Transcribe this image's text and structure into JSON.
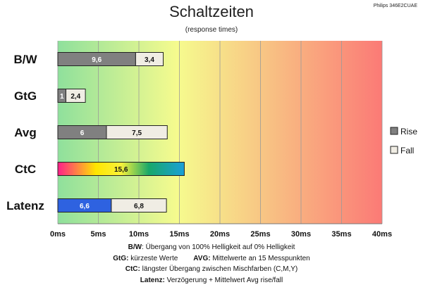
{
  "header": {
    "title": "Schaltzeiten",
    "subtitle": "(response times)",
    "model": "Philips 346E2CUAE"
  },
  "chart_data": {
    "type": "bar",
    "orientation": "horizontal",
    "stacked": true,
    "title": "Schaltzeiten",
    "subtitle": "(response times)",
    "categories": [
      "B/W",
      "GtG",
      "Avg",
      "CtC",
      "Latenz"
    ],
    "series": [
      {
        "name": "Rise",
        "values": [
          9.6,
          1,
          6,
          15.6,
          6.6
        ],
        "labels": [
          "9,6",
          "1",
          "6",
          "15,6",
          "6,6"
        ]
      },
      {
        "name": "Fall",
        "values": [
          3.4,
          2.4,
          7.5,
          null,
          6.8
        ],
        "labels": [
          "3,4",
          "2,4",
          "7,5",
          "",
          "6,8"
        ]
      }
    ],
    "xlim": [
      0,
      40
    ],
    "xticks": [
      "0ms",
      "5ms",
      "10ms",
      "15ms",
      "20ms",
      "25ms",
      "30ms",
      "35ms",
      "40ms"
    ],
    "grid": true,
    "legend": "right",
    "colors": {
      "rise": "#808080",
      "fall": "#f0ede4",
      "latenz_rise": "#2e62e0",
      "bg_good": "#8fe09c",
      "bg_mid": "#f6fb8e",
      "bg_bad": "#fb7a76"
    }
  },
  "notes": {
    "l1_key": "B/W",
    "l1_text": ":  Übergang von 100% Helligkeit auf 0% Helligkeit",
    "l2a_key": "GtG:",
    "l2a_text": " kürzeste  Werte",
    "l2b_key": "AVG:",
    "l2b_text": " Mittelwerte  an 15 Messpunkten",
    "l3_key": "CtC:",
    "l3_text": " längster Übergang  zwischen Mischfarben  (C,M,Y)",
    "l4_key": "Latenz:",
    "l4_text": " Verzögerung  + Mittelwert Avg rise/fall"
  }
}
